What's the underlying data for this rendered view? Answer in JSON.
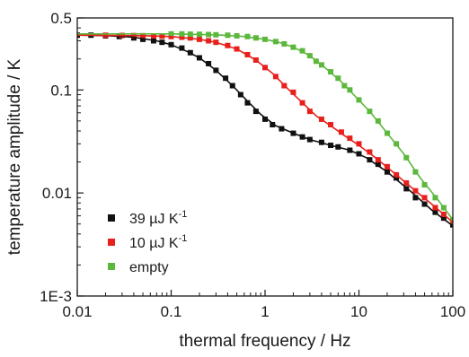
{
  "chart_data": {
    "type": "scatter",
    "x_scale": "log",
    "y_scale": "log",
    "xlim": [
      0.01,
      100
    ],
    "ylim": [
      0.001,
      0.5
    ],
    "grid": false,
    "legend_placement": "bottom-left",
    "xlabel": "thermal frequency / Hz",
    "ylabel": "temperature amplitude / K",
    "x_ticks": [
      {
        "value": 0.01,
        "label": "0.01"
      },
      {
        "value": 0.1,
        "label": "0.1"
      },
      {
        "value": 1,
        "label": "1"
      },
      {
        "value": 10,
        "label": "10"
      },
      {
        "value": 100,
        "label": "100"
      }
    ],
    "y_ticks": [
      {
        "value": 0.001,
        "label": "1E-3"
      },
      {
        "value": 0.01,
        "label": "0.01"
      },
      {
        "value": 0.1,
        "label": "0.1"
      },
      {
        "value": 0.5,
        "label": "0.5"
      }
    ],
    "series": [
      {
        "name": "39 µJ K",
        "name_superscript": "-1",
        "color": "#111111",
        "points": [
          [
            0.01,
            0.34
          ],
          [
            0.014,
            0.34
          ],
          [
            0.02,
            0.335
          ],
          [
            0.028,
            0.33
          ],
          [
            0.04,
            0.32
          ],
          [
            0.05,
            0.31
          ],
          [
            0.065,
            0.3
          ],
          [
            0.08,
            0.29
          ],
          [
            0.1,
            0.275
          ],
          [
            0.13,
            0.255
          ],
          [
            0.16,
            0.23
          ],
          [
            0.2,
            0.205
          ],
          [
            0.25,
            0.18
          ],
          [
            0.3,
            0.155
          ],
          [
            0.38,
            0.13
          ],
          [
            0.45,
            0.11
          ],
          [
            0.55,
            0.09
          ],
          [
            0.65,
            0.075
          ],
          [
            0.8,
            0.062
          ],
          [
            1.0,
            0.052
          ],
          [
            1.2,
            0.046
          ],
          [
            1.5,
            0.042
          ],
          [
            2.0,
            0.038
          ],
          [
            2.5,
            0.035
          ],
          [
            3.0,
            0.033
          ],
          [
            4.0,
            0.031
          ],
          [
            5.0,
            0.029
          ],
          [
            6.0,
            0.028
          ],
          [
            8.0,
            0.026
          ],
          [
            10.0,
            0.024
          ],
          [
            13.0,
            0.021
          ],
          [
            16.0,
            0.019
          ],
          [
            20.0,
            0.016
          ],
          [
            25.0,
            0.014
          ],
          [
            32.0,
            0.011
          ],
          [
            40.0,
            0.009
          ],
          [
            50.0,
            0.0078
          ],
          [
            65.0,
            0.0065
          ],
          [
            80.0,
            0.0057
          ],
          [
            100.0,
            0.0049
          ]
        ],
        "fit": [
          [
            0.01,
            0.34
          ],
          [
            0.02,
            0.337
          ],
          [
            0.04,
            0.325
          ],
          [
            0.07,
            0.3
          ],
          [
            0.1,
            0.275
          ],
          [
            0.15,
            0.235
          ],
          [
            0.2,
            0.205
          ],
          [
            0.3,
            0.155
          ],
          [
            0.45,
            0.11
          ],
          [
            0.65,
            0.078
          ],
          [
            0.9,
            0.058
          ],
          [
            1.3,
            0.045
          ],
          [
            2.0,
            0.038
          ],
          [
            3.0,
            0.033
          ],
          [
            5.0,
            0.029
          ],
          [
            8.0,
            0.026
          ],
          [
            12.0,
            0.022
          ],
          [
            20.0,
            0.016
          ],
          [
            35.0,
            0.0105
          ],
          [
            60.0,
            0.0068
          ],
          [
            100.0,
            0.0048
          ]
        ]
      },
      {
        "name": "10 µJ K",
        "name_superscript": "-1",
        "color": "#e8201c",
        "points": [
          [
            0.02,
            0.34
          ],
          [
            0.03,
            0.338
          ],
          [
            0.04,
            0.337
          ],
          [
            0.05,
            0.336
          ],
          [
            0.065,
            0.335
          ],
          [
            0.08,
            0.333
          ],
          [
            0.1,
            0.33
          ],
          [
            0.13,
            0.325
          ],
          [
            0.16,
            0.32
          ],
          [
            0.2,
            0.31
          ],
          [
            0.25,
            0.3
          ],
          [
            0.3,
            0.29
          ],
          [
            0.4,
            0.27
          ],
          [
            0.5,
            0.25
          ],
          [
            0.65,
            0.22
          ],
          [
            0.8,
            0.195
          ],
          [
            1.0,
            0.165
          ],
          [
            1.3,
            0.135
          ],
          [
            1.6,
            0.11
          ],
          [
            2.0,
            0.095
          ],
          [
            2.5,
            0.075
          ],
          [
            3.0,
            0.062
          ],
          [
            4.0,
            0.052
          ],
          [
            5.0,
            0.046
          ],
          [
            6.5,
            0.039
          ],
          [
            8.0,
            0.034
          ],
          [
            10.0,
            0.03
          ],
          [
            13.0,
            0.025
          ],
          [
            16.0,
            0.021
          ],
          [
            20.0,
            0.018
          ],
          [
            25.0,
            0.015
          ],
          [
            32.0,
            0.0125
          ],
          [
            40.0,
            0.0105
          ],
          [
            50.0,
            0.009
          ],
          [
            65.0,
            0.0072
          ],
          [
            80.0,
            0.0062
          ],
          [
            100.0,
            0.0052
          ]
        ],
        "fit": [
          [
            0.01,
            0.34
          ],
          [
            0.05,
            0.336
          ],
          [
            0.1,
            0.33
          ],
          [
            0.2,
            0.31
          ],
          [
            0.3,
            0.29
          ],
          [
            0.5,
            0.25
          ],
          [
            0.8,
            0.195
          ],
          [
            1.2,
            0.145
          ],
          [
            1.8,
            0.1
          ],
          [
            2.5,
            0.075
          ],
          [
            3.5,
            0.056
          ],
          [
            5.0,
            0.045
          ],
          [
            7.0,
            0.036
          ],
          [
            10.0,
            0.029
          ],
          [
            15.0,
            0.022
          ],
          [
            25.0,
            0.015
          ],
          [
            40.0,
            0.0105
          ],
          [
            65.0,
            0.0073
          ],
          [
            100.0,
            0.0052
          ]
        ]
      },
      {
        "name": "empty",
        "name_superscript": "",
        "color": "#5cb83c",
        "points": [
          [
            0.1,
            0.35
          ],
          [
            0.13,
            0.35
          ],
          [
            0.16,
            0.348
          ],
          [
            0.2,
            0.347
          ],
          [
            0.25,
            0.345
          ],
          [
            0.3,
            0.343
          ],
          [
            0.4,
            0.34
          ],
          [
            0.5,
            0.335
          ],
          [
            0.65,
            0.33
          ],
          [
            0.8,
            0.32
          ],
          [
            1.0,
            0.31
          ],
          [
            1.3,
            0.295
          ],
          [
            1.6,
            0.28
          ],
          [
            2.0,
            0.26
          ],
          [
            2.5,
            0.24
          ],
          [
            3.0,
            0.215
          ],
          [
            3.5,
            0.19
          ],
          [
            4.0,
            0.175
          ],
          [
            5.0,
            0.15
          ],
          [
            6.0,
            0.13
          ],
          [
            7.0,
            0.11
          ],
          [
            8.0,
            0.1
          ],
          [
            10.0,
            0.08
          ],
          [
            13.0,
            0.062
          ],
          [
            16.0,
            0.05
          ],
          [
            20.0,
            0.038
          ],
          [
            25.0,
            0.03
          ],
          [
            32.0,
            0.022
          ],
          [
            40.0,
            0.016
          ],
          [
            50.0,
            0.012
          ],
          [
            65.0,
            0.009
          ],
          [
            80.0,
            0.0072
          ],
          [
            100.0,
            0.0055
          ]
        ],
        "fit": [
          [
            0.01,
            0.35
          ],
          [
            0.1,
            0.35
          ],
          [
            0.3,
            0.343
          ],
          [
            0.6,
            0.33
          ],
          [
            1.0,
            0.31
          ],
          [
            1.5,
            0.285
          ],
          [
            2.0,
            0.26
          ],
          [
            3.0,
            0.215
          ],
          [
            4.5,
            0.16
          ],
          [
            6.5,
            0.12
          ],
          [
            9.0,
            0.088
          ],
          [
            13.0,
            0.062
          ],
          [
            20.0,
            0.038
          ],
          [
            30.0,
            0.024
          ],
          [
            45.0,
            0.014
          ],
          [
            70.0,
            0.0085
          ],
          [
            100.0,
            0.0055
          ]
        ]
      }
    ]
  }
}
